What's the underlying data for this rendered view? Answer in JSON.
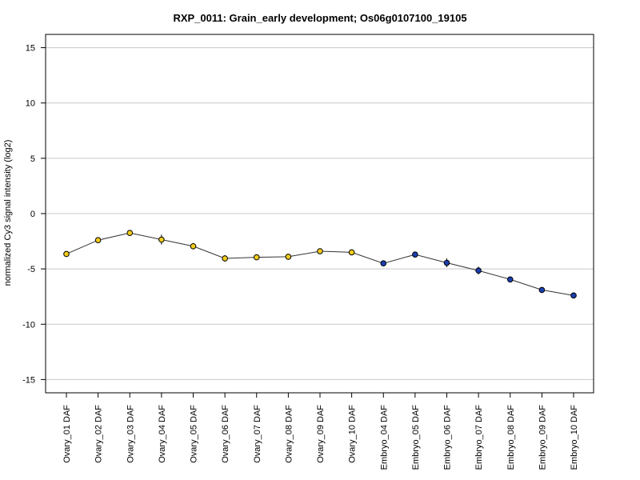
{
  "chart_data": {
    "type": "line",
    "title": "RXP_0011: Grain_early development; Os06g0107100_19105",
    "xlabel": "",
    "ylabel": "normalized Cy3 signal intensity (log2)",
    "ylim": [
      -16.2,
      16.2
    ],
    "yticks": [
      -15,
      -10,
      -5,
      0,
      5,
      10,
      15
    ],
    "grid": true,
    "categories": [
      "Ovary_01 DAF",
      "Ovary_02 DAF",
      "Ovary_03 DAF",
      "Ovary_04 DAF",
      "Ovary_05 DAF",
      "Ovary_06 DAF",
      "Ovary_07 DAF",
      "Ovary_08 DAF",
      "Ovary_09 DAF",
      "Ovary_10 DAF",
      "Embryo_04 DAF",
      "Embryo_05 DAF",
      "Embryo_06 DAF",
      "Embryo_07 DAF",
      "Embryo_08 DAF",
      "Embryo_09 DAF",
      "Embryo_10 DAF"
    ],
    "series": [
      {
        "values": [
          -3.65,
          -2.4,
          -1.75,
          -2.35,
          -2.95,
          -4.05,
          -3.95,
          -3.9,
          -3.4,
          -3.5,
          -4.5,
          -3.7,
          -4.45,
          -5.15,
          -5.95,
          -6.9,
          -7.4
        ],
        "errors": [
          0.1,
          0.15,
          0.15,
          0.45,
          0.12,
          0.3,
          0.1,
          0.1,
          0.1,
          0.15,
          0.12,
          0.15,
          0.4,
          0.35,
          0.12,
          0.1,
          0.1
        ],
        "point_colors": [
          "#f2cc1a",
          "#f2cc1a",
          "#f2cc1a",
          "#f2cc1a",
          "#f2cc1a",
          "#f2cc1a",
          "#f2cc1a",
          "#f2cc1a",
          "#f2cc1a",
          "#f2cc1a",
          "#1a3fb0",
          "#1a3fb0",
          "#1a3fb0",
          "#1a3fb0",
          "#1a3fb0",
          "#1a3fb0",
          "#1a3fb0"
        ]
      }
    ]
  }
}
